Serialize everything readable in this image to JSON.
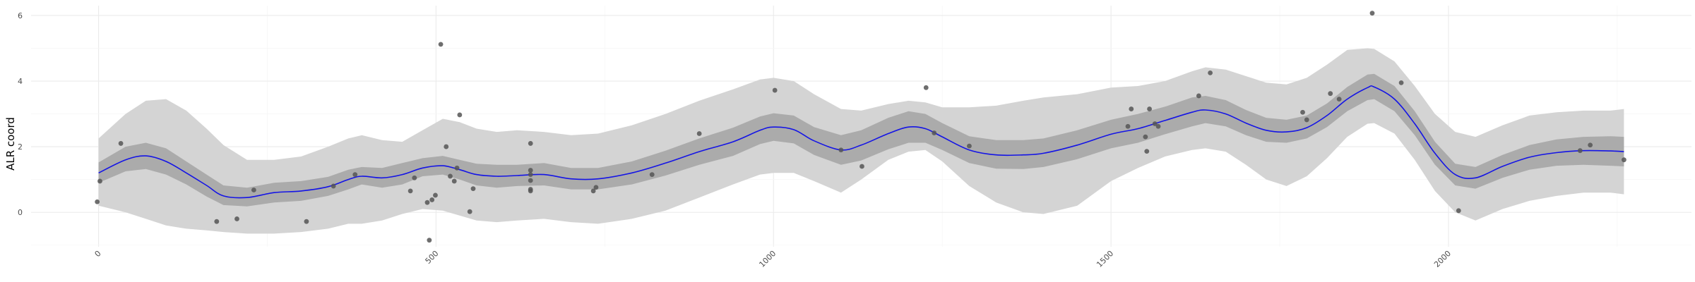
{
  "chart_data": {
    "type": "scatter",
    "title": "",
    "xlabel": "",
    "ylabel": "ALR coord",
    "xlim": [
      -100,
      2360
    ],
    "ylim": [
      -1.05,
      6.3
    ],
    "grid": true,
    "x_ticks": [
      0,
      500,
      1000,
      1500,
      2000
    ],
    "x_tick_labels": [
      "0",
      "500",
      "1000",
      "1500",
      "2000"
    ],
    "y_ticks": [
      0,
      2,
      4,
      6
    ],
    "y_tick_labels": [
      "0",
      "2",
      "4",
      "6"
    ],
    "colors": {
      "points": "#555555",
      "line": "#1414e6",
      "outer_band": "#d4d4d4",
      "inner_band": "#ababab",
      "grid_major": "#ebebeb",
      "grid_minor": "#f5f5f5"
    },
    "points": [
      {
        "x": -2,
        "y": 0.32
      },
      {
        "x": 2,
        "y": 0.95
      },
      {
        "x": 33,
        "y": 2.1
      },
      {
        "x": 175,
        "y": -0.28
      },
      {
        "x": 205,
        "y": -0.2
      },
      {
        "x": 230,
        "y": 0.68
      },
      {
        "x": 308,
        "y": -0.28
      },
      {
        "x": 348,
        "y": 0.8
      },
      {
        "x": 380,
        "y": 1.15
      },
      {
        "x": 462,
        "y": 0.65
      },
      {
        "x": 468,
        "y": 1.05
      },
      {
        "x": 487,
        "y": 0.3
      },
      {
        "x": 490,
        "y": -0.85
      },
      {
        "x": 494,
        "y": 0.38
      },
      {
        "x": 499,
        "y": 0.52
      },
      {
        "x": 507,
        "y": 5.12
      },
      {
        "x": 515,
        "y": 2.0
      },
      {
        "x": 521,
        "y": 1.1
      },
      {
        "x": 527,
        "y": 0.95
      },
      {
        "x": 531,
        "y": 1.35
      },
      {
        "x": 535,
        "y": 2.97
      },
      {
        "x": 550,
        "y": 0.02
      },
      {
        "x": 555,
        "y": 0.72
      },
      {
        "x": 640,
        "y": 2.1
      },
      {
        "x": 640,
        "y": 1.28
      },
      {
        "x": 640,
        "y": 1.15
      },
      {
        "x": 640,
        "y": 0.97
      },
      {
        "x": 640,
        "y": 0.7
      },
      {
        "x": 640,
        "y": 0.65
      },
      {
        "x": 733,
        "y": 0.65
      },
      {
        "x": 737,
        "y": 0.76
      },
      {
        "x": 820,
        "y": 1.15
      },
      {
        "x": 890,
        "y": 2.4
      },
      {
        "x": 1002,
        "y": 3.72
      },
      {
        "x": 1100,
        "y": 1.9
      },
      {
        "x": 1131,
        "y": 1.4
      },
      {
        "x": 1226,
        "y": 3.8
      },
      {
        "x": 1238,
        "y": 2.42
      },
      {
        "x": 1290,
        "y": 2.02
      },
      {
        "x": 1525,
        "y": 2.62
      },
      {
        "x": 1530,
        "y": 3.15
      },
      {
        "x": 1551,
        "y": 2.3
      },
      {
        "x": 1553,
        "y": 1.86
      },
      {
        "x": 1557,
        "y": 3.15
      },
      {
        "x": 1565,
        "y": 2.7
      },
      {
        "x": 1570,
        "y": 2.62
      },
      {
        "x": 1630,
        "y": 3.55
      },
      {
        "x": 1647,
        "y": 4.25
      },
      {
        "x": 1784,
        "y": 3.05
      },
      {
        "x": 1790,
        "y": 2.82
      },
      {
        "x": 1825,
        "y": 3.62
      },
      {
        "x": 1838,
        "y": 3.45
      },
      {
        "x": 1887,
        "y": 6.07
      },
      {
        "x": 1930,
        "y": 3.95
      },
      {
        "x": 2015,
        "y": 0.05
      },
      {
        "x": 2195,
        "y": 1.88
      },
      {
        "x": 2210,
        "y": 2.05
      },
      {
        "x": 2260,
        "y": 1.6
      }
    ],
    "fit": {
      "x": [
        0,
        40,
        70,
        100,
        130,
        160,
        185,
        220,
        260,
        300,
        340,
        370,
        390,
        420,
        450,
        480,
        510,
        535,
        560,
        590,
        620,
        660,
        700,
        740,
        790,
        840,
        890,
        940,
        980,
        1000,
        1030,
        1060,
        1100,
        1130,
        1170,
        1200,
        1225,
        1250,
        1290,
        1330,
        1370,
        1400,
        1450,
        1500,
        1540,
        1580,
        1620,
        1640,
        1670,
        1700,
        1730,
        1760,
        1790,
        1820,
        1850,
        1880,
        1890,
        1920,
        1950,
        1980,
        2010,
        2040,
        2080,
        2120,
        2160,
        2200,
        2240,
        2260
      ],
      "y": [
        1.2,
        1.6,
        1.72,
        1.55,
        1.2,
        0.82,
        0.5,
        0.45,
        0.6,
        0.65,
        0.78,
        1.0,
        1.1,
        1.05,
        1.15,
        1.35,
        1.42,
        1.3,
        1.15,
        1.1,
        1.12,
        1.15,
        1.02,
        1.02,
        1.2,
        1.5,
        1.85,
        2.15,
        2.5,
        2.6,
        2.52,
        2.18,
        1.9,
        2.05,
        2.4,
        2.6,
        2.55,
        2.3,
        1.9,
        1.75,
        1.75,
        1.8,
        2.05,
        2.38,
        2.55,
        2.8,
        3.05,
        3.12,
        3.0,
        2.72,
        2.5,
        2.45,
        2.58,
        2.95,
        3.45,
        3.8,
        3.82,
        3.45,
        2.7,
        1.8,
        1.15,
        1.05,
        1.4,
        1.68,
        1.82,
        1.88,
        1.87,
        1.85
      ],
      "inner_lo": [
        0.9,
        1.25,
        1.32,
        1.15,
        0.85,
        0.48,
        0.22,
        0.18,
        0.3,
        0.35,
        0.5,
        0.7,
        0.85,
        0.75,
        0.85,
        1.1,
        1.15,
        1.0,
        0.82,
        0.75,
        0.8,
        0.82,
        0.7,
        0.7,
        0.85,
        1.12,
        1.45,
        1.72,
        2.08,
        2.18,
        2.1,
        1.75,
        1.45,
        1.58,
        1.92,
        2.12,
        2.12,
        1.9,
        1.5,
        1.33,
        1.32,
        1.38,
        1.62,
        1.95,
        2.12,
        2.38,
        2.62,
        2.72,
        2.62,
        2.35,
        2.15,
        2.12,
        2.25,
        2.6,
        3.08,
        3.42,
        3.45,
        3.08,
        2.35,
        1.45,
        0.82,
        0.72,
        1.05,
        1.3,
        1.42,
        1.45,
        1.42,
        1.4
      ],
      "inner_hi": [
        1.52,
        2.0,
        2.12,
        1.95,
        1.55,
        1.15,
        0.82,
        0.75,
        0.9,
        0.95,
        1.08,
        1.3,
        1.38,
        1.35,
        1.5,
        1.65,
        1.72,
        1.6,
        1.48,
        1.45,
        1.45,
        1.5,
        1.35,
        1.35,
        1.55,
        1.88,
        2.25,
        2.58,
        2.92,
        3.02,
        2.95,
        2.6,
        2.35,
        2.5,
        2.88,
        3.08,
        3.0,
        2.72,
        2.32,
        2.2,
        2.2,
        2.25,
        2.5,
        2.82,
        3.0,
        3.22,
        3.5,
        3.55,
        3.42,
        3.12,
        2.88,
        2.82,
        2.95,
        3.32,
        3.82,
        4.2,
        4.22,
        3.85,
        3.08,
        2.15,
        1.48,
        1.38,
        1.75,
        2.05,
        2.22,
        2.3,
        2.32,
        2.3
      ],
      "outer_lo": [
        0.2,
        0.0,
        -0.2,
        -0.4,
        -0.5,
        -0.55,
        -0.6,
        -0.65,
        -0.65,
        -0.6,
        -0.5,
        -0.35,
        -0.35,
        -0.25,
        -0.05,
        0.1,
        0.05,
        -0.1,
        -0.25,
        -0.3,
        -0.25,
        -0.2,
        -0.3,
        -0.35,
        -0.2,
        0.05,
        0.45,
        0.85,
        1.15,
        1.2,
        1.2,
        0.95,
        0.6,
        1.0,
        1.6,
        1.85,
        1.9,
        1.55,
        0.8,
        0.3,
        0.0,
        -0.05,
        0.2,
        0.95,
        1.35,
        1.7,
        1.9,
        1.95,
        1.85,
        1.45,
        1.0,
        0.8,
        1.1,
        1.65,
        2.3,
        2.7,
        2.72,
        2.4,
        1.6,
        0.65,
        0.0,
        -0.25,
        0.1,
        0.35,
        0.5,
        0.6,
        0.6,
        0.55
      ],
      "outer_hi": [
        2.25,
        3.0,
        3.4,
        3.45,
        3.1,
        2.55,
        2.05,
        1.6,
        1.6,
        1.7,
        2.0,
        2.25,
        2.35,
        2.2,
        2.15,
        2.5,
        2.85,
        2.75,
        2.55,
        2.45,
        2.5,
        2.45,
        2.35,
        2.4,
        2.65,
        3.0,
        3.4,
        3.75,
        4.05,
        4.1,
        4.0,
        3.6,
        3.15,
        3.1,
        3.3,
        3.4,
        3.35,
        3.2,
        3.2,
        3.25,
        3.4,
        3.5,
        3.6,
        3.8,
        3.85,
        4.0,
        4.3,
        4.42,
        4.35,
        4.15,
        3.95,
        3.9,
        4.1,
        4.5,
        4.95,
        5.0,
        4.98,
        4.6,
        3.85,
        3.0,
        2.45,
        2.3,
        2.65,
        2.95,
        3.05,
        3.1,
        3.1,
        3.15
      ]
    }
  }
}
